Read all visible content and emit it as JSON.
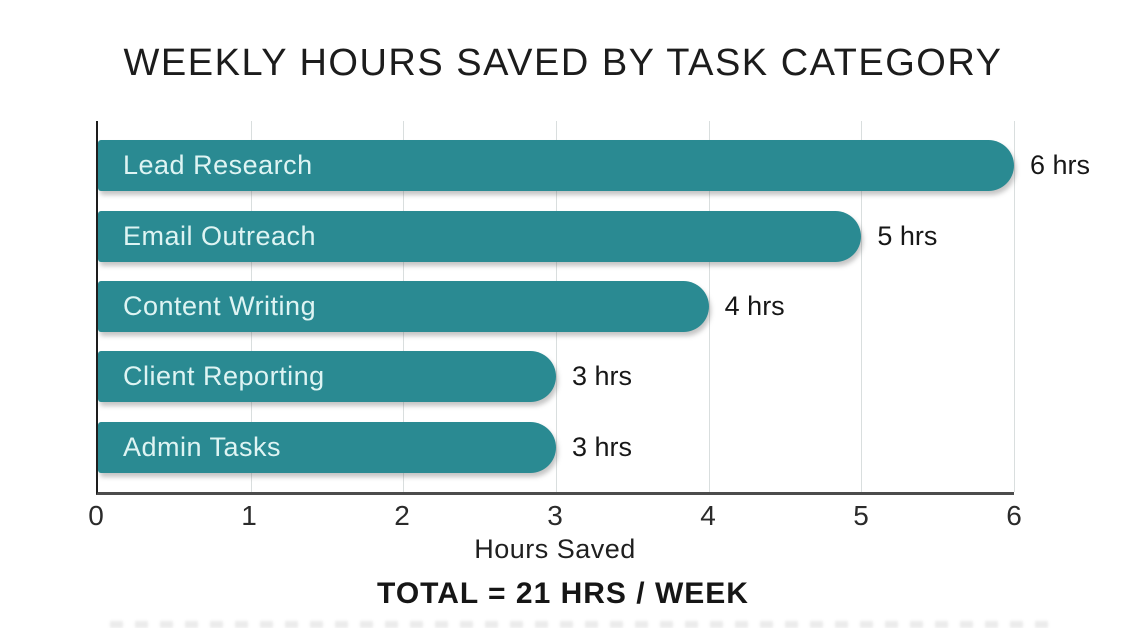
{
  "page": {
    "background": "#ffffff"
  },
  "header": {
    "title": "WEEKLY HOURS SAVED BY TASK CATEGORY"
  },
  "chart_data": {
    "type": "bar",
    "orientation": "horizontal",
    "title": "WEEKLY HOURS SAVED BY TASK CATEGORY",
    "categories": [
      "Lead Research",
      "Email Outreach",
      "Content Writing",
      "Client Reporting",
      "Admin Tasks"
    ],
    "values": [
      6,
      5,
      4,
      3,
      3
    ],
    "value_labels": [
      "6 hrs",
      "5 hrs",
      "4 hrs",
      "3 hrs",
      "3 hrs"
    ],
    "xlabel": "Hours Saved",
    "x_ticks": [
      0,
      1,
      2,
      3,
      4,
      5,
      6
    ],
    "xlim": [
      0,
      6
    ],
    "grid": true,
    "legend": false,
    "bar_color": "#2a8a92",
    "bar_label_color": "#def4f3",
    "grid_color": "#d9dede",
    "axis_color": "#1d1d1d",
    "text_color": "#1a1a1a"
  },
  "footer": {
    "total": "TOTAL = 21 HRS / WEEK"
  }
}
